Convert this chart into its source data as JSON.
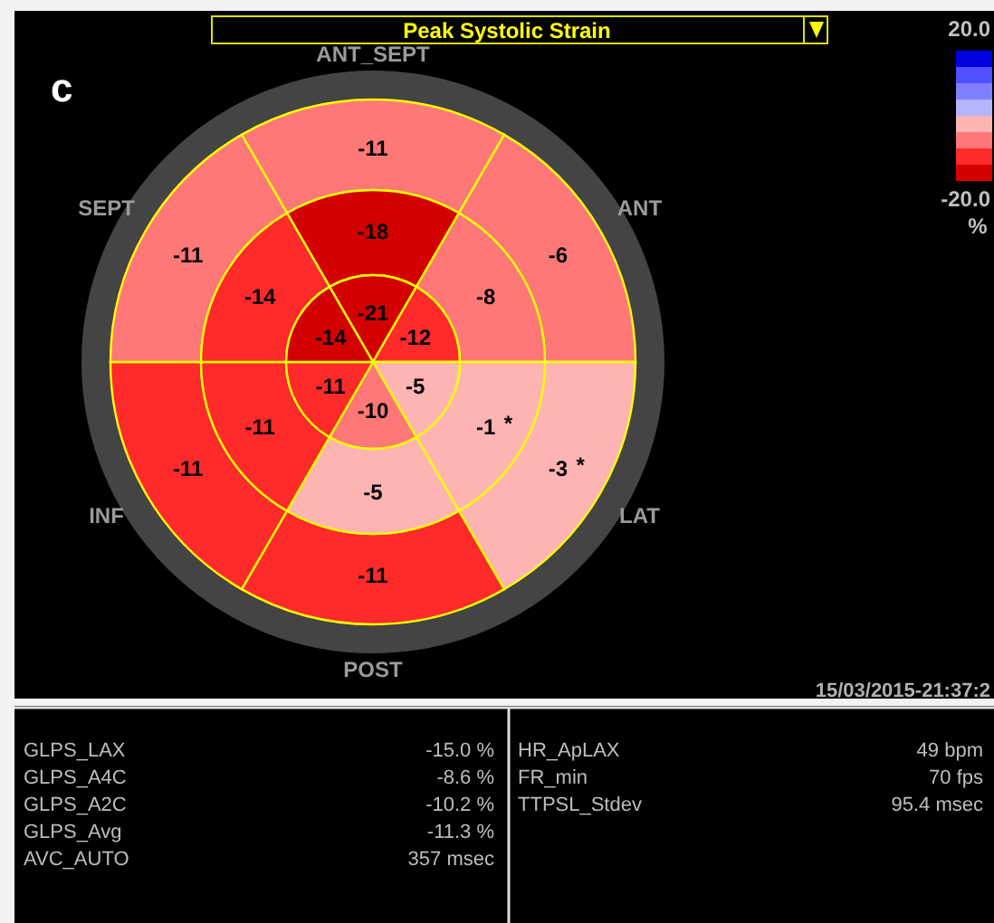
{
  "chart_data": {
    "type": "other",
    "title": "Peak Systolic Strain",
    "categories": [
      "ANT_SEPT",
      "ANT",
      "LAT",
      "POST",
      "INF",
      "SEPT"
    ],
    "data_labels": true,
    "series": [
      {
        "values": [
          -11,
          -6,
          -3,
          -11,
          -11,
          -11
        ],
        "colors": [
          "#ff7878",
          "#ff7878",
          "#ffb4b4",
          "#ff2a2a",
          "#ff2a2a",
          "#ff7878"
        ]
      },
      {
        "values": [
          -18,
          -8,
          -1,
          -5,
          -11,
          -14
        ],
        "colors": [
          "#d40000",
          "#ff7878",
          "#ffb4b4",
          "#ffb4b4",
          "#ff2a2a",
          "#ff2a2a"
        ]
      },
      {
        "values": [
          -21,
          -12,
          -5,
          -10,
          -11,
          -14
        ],
        "colors": [
          "#d40000",
          "#ff2a2a",
          "#ffb4b4",
          "#ff7878",
          "#ff2a2a",
          "#d40000"
        ]
      }
    ],
    "annotations": [
      "c",
      "20.0",
      "-20.0",
      "%",
      "15/03/2015-21:37:2",
      "GLPS_LAX",
      "-15.0 %",
      "GLPS_A4C",
      "-8.6 %",
      "GLPS_A2C",
      "-10.2 %",
      "GLPS_Avg",
      "-11.3 %",
      "AVC_AUTO",
      "357 msec",
      "HR_ApLAX",
      "49 bpm",
      "FR_min",
      "70 fps",
      "TTPSL_Stdev",
      "95.4 msec",
      {
        "text": "*",
        "x": "LAT"
      },
      {
        "text": "*",
        "x": "LAT"
      }
    ]
  }
}
